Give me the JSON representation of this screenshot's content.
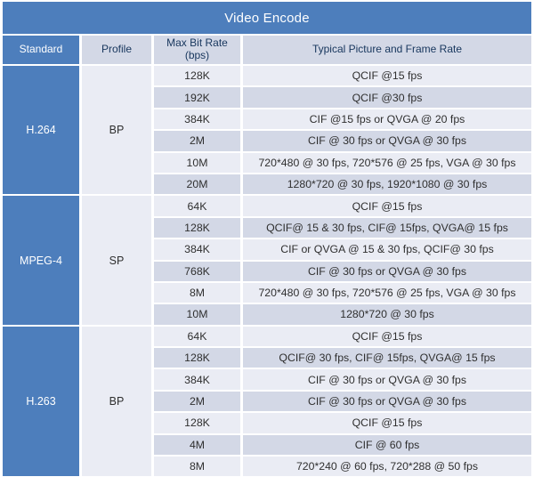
{
  "title": "Video Encode",
  "header": {
    "standard": "Standard",
    "profile": "Profile",
    "max_bit_rate": "Max Bit Rate",
    "max_bit_rate_unit": "(bps)",
    "typical": "Typical Picture and Frame Rate"
  },
  "sections": [
    {
      "standard": "H.264",
      "profile": "BP",
      "rows": [
        {
          "bitrate": "128K",
          "desc": "QCIF @15 fps"
        },
        {
          "bitrate": "192K",
          "desc": "QCIF @30 fps"
        },
        {
          "bitrate": "384K",
          "desc": "CIF @15 fps or QVGA @ 20 fps"
        },
        {
          "bitrate": "2M",
          "desc": "CIF @ 30 fps or QVGA @ 30 fps"
        },
        {
          "bitrate": "10M",
          "desc": "720*480 @ 30 fps, 720*576 @ 25 fps, VGA @ 30 fps"
        },
        {
          "bitrate": "20M",
          "desc": "1280*720 @ 30 fps, 1920*1080 @ 30 fps"
        }
      ]
    },
    {
      "standard": "MPEG-4",
      "profile": "SP",
      "rows": [
        {
          "bitrate": "64K",
          "desc": "QCIF @15 fps"
        },
        {
          "bitrate": "128K",
          "desc": "QCIF@ 15 & 30 fps, CIF@ 15fps, QVGA@ 15 fps"
        },
        {
          "bitrate": "384K",
          "desc": "CIF or QVGA @ 15 & 30 fps, QCIF@ 30 fps"
        },
        {
          "bitrate": "768K",
          "desc": "CIF @ 30 fps or QVGA @ 30 fps"
        },
        {
          "bitrate": "8M",
          "desc": "720*480 @ 30 fps, 720*576 @ 25 fps, VGA @ 30 fps"
        },
        {
          "bitrate": "10M",
          "desc": "1280*720 @ 30 fps"
        }
      ]
    },
    {
      "standard": "H.263",
      "profile": "BP",
      "rows": [
        {
          "bitrate": "64K",
          "desc": "QCIF @15 fps"
        },
        {
          "bitrate": "128K",
          "desc": "QCIF@ 30 fps, CIF@ 15fps, QVGA@ 15 fps"
        },
        {
          "bitrate": "384K",
          "desc": "CIF @ 30 fps or QVGA @ 30 fps"
        },
        {
          "bitrate": "2M",
          "desc": "CIF @ 30 fps or QVGA @ 30 fps"
        },
        {
          "bitrate": "128K",
          "desc": "QCIF @15 fps"
        },
        {
          "bitrate": "4M",
          "desc": "CIF @ 60 fps"
        },
        {
          "bitrate": "8M",
          "desc": "720*240 @ 60 fps, 720*288 @ 50 fps"
        }
      ]
    }
  ],
  "colors": {
    "accent-blue": "#4d7ebc",
    "header-bg": "#d3d8e6",
    "header-text": "#17365d",
    "row-light": "#eaecf4",
    "row-dark": "#d3d8e6",
    "body-text": "#2f2f2f",
    "title-text": "#ffffff",
    "page-bg": "#ffffff"
  }
}
